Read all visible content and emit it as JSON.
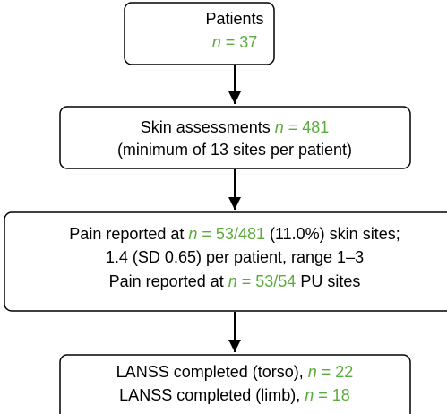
{
  "nodes": [
    {
      "lines": [
        [
          {
            "text": "Patients"
          }
        ],
        [
          {
            "text": "n",
            "color": "#5aab3c",
            "italic": true
          },
          {
            "text": " = 37",
            "color": "#5aab3c"
          }
        ]
      ]
    },
    {
      "lines": [
        [
          {
            "text": "Skin assessments "
          },
          {
            "text": "n",
            "color": "#5aab3c",
            "italic": true
          },
          {
            "text": " = 481",
            "color": "#5aab3c"
          }
        ],
        [
          {
            "text": "(minimum of 13 sites per patient)"
          }
        ]
      ]
    },
    {
      "lines": [
        [
          {
            "text": "Pain reported at "
          },
          {
            "text": "n",
            "color": "#5aab3c",
            "italic": true
          },
          {
            "text": " = 53/481",
            "color": "#5aab3c"
          },
          {
            "text": " (11.0%) skin sites;"
          }
        ],
        [
          {
            "text": "1.4 (SD 0.65) per patient, range 1–3"
          }
        ],
        [
          {
            "text": "Pain reported at "
          },
          {
            "text": "n",
            "color": "#5aab3c",
            "italic": true
          },
          {
            "text": " = 53/54",
            "color": "#5aab3c"
          },
          {
            "text": " PU sites"
          }
        ]
      ]
    },
    {
      "lines": [
        [
          {
            "text": "LANSS completed (torso), "
          },
          {
            "text": "n",
            "color": "#5aab3c",
            "italic": true
          },
          {
            "text": " = 22",
            "color": "#5aab3c"
          }
        ],
        [
          {
            "text": "LANSS completed (limb), "
          },
          {
            "text": "n",
            "color": "#5aab3c",
            "italic": true
          },
          {
            "text": " = 18",
            "color": "#5aab3c"
          }
        ]
      ]
    }
  ]
}
